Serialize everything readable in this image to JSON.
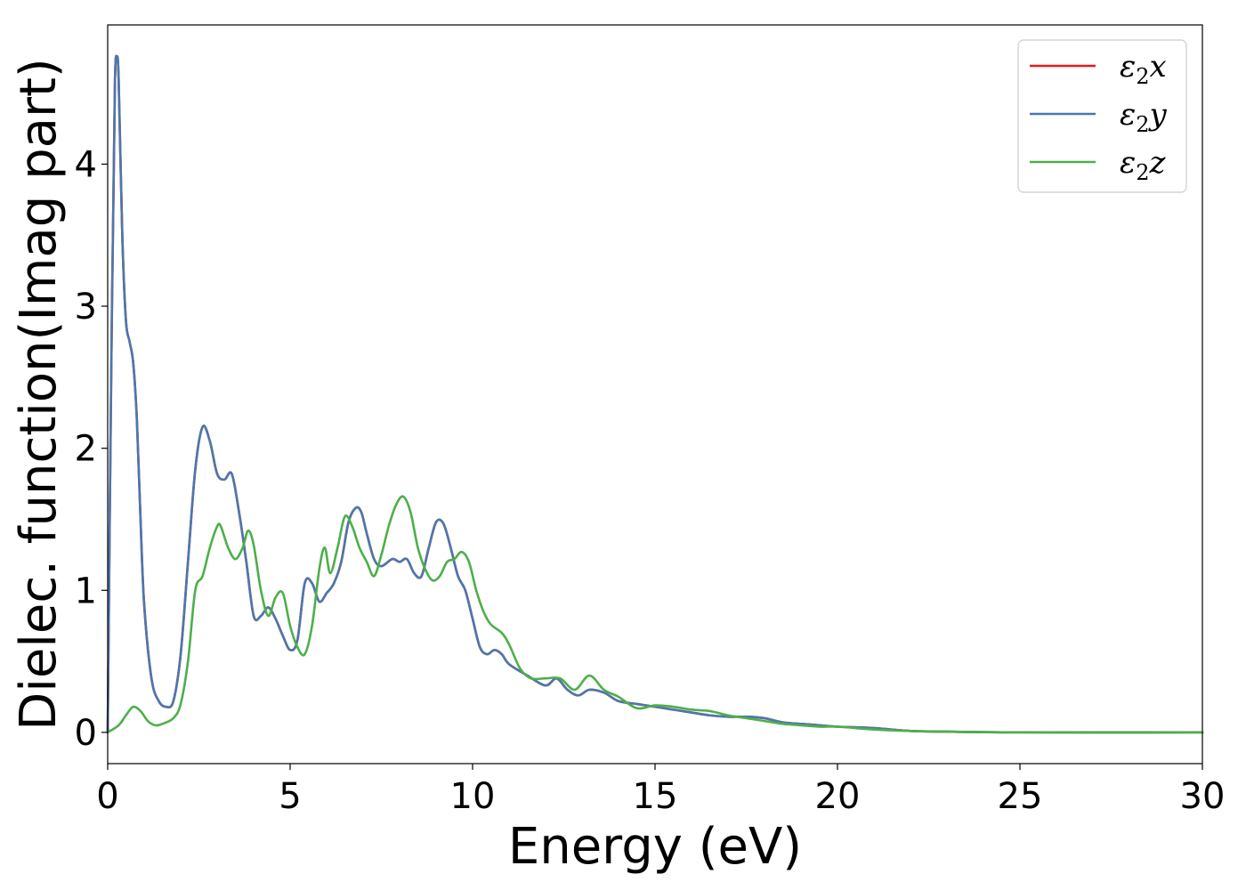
{
  "chart_data": {
    "type": "line",
    "xlabel": "Energy (eV)",
    "ylabel": "Dielec. function(Imag part)",
    "xlim": [
      0,
      30
    ],
    "ylim": [
      -0.22,
      4.98
    ],
    "xticks": [
      0,
      5,
      10,
      15,
      20,
      25,
      30
    ],
    "yticks": [
      0,
      1,
      2,
      3,
      4
    ],
    "grid": false,
    "legend_position": "top-right",
    "series": [
      {
        "name": "ε2x",
        "legend_main": "ε",
        "legend_sub": "2",
        "legend_suffix": "x",
        "color": "#e41a1c",
        "x": [
          0,
          0.1,
          0.2,
          0.25,
          0.3,
          0.4,
          0.5,
          0.6,
          0.7,
          0.8,
          0.9,
          1.0,
          1.2,
          1.4,
          1.6,
          1.8,
          2.0,
          2.2,
          2.4,
          2.6,
          2.8,
          3.0,
          3.2,
          3.4,
          3.6,
          3.8,
          4.0,
          4.2,
          4.4,
          4.6,
          4.8,
          5.0,
          5.2,
          5.4,
          5.6,
          5.8,
          6.0,
          6.2,
          6.4,
          6.6,
          6.8,
          6.95,
          7.1,
          7.3,
          7.5,
          7.8,
          8.0,
          8.2,
          8.4,
          8.6,
          8.8,
          9.0,
          9.2,
          9.4,
          9.6,
          9.8,
          10.0,
          10.2,
          10.4,
          10.6,
          10.8,
          11.0,
          11.5,
          12.0,
          12.3,
          12.6,
          12.9,
          13.2,
          13.6,
          14.0,
          14.5,
          15.0,
          15.5,
          16.0,
          16.5,
          17.0,
          17.5,
          18.0,
          18.5,
          19.0,
          19.5,
          20.0,
          21.0,
          22.0,
          23.0,
          25.0,
          30.0
        ],
        "values": [
          0.0,
          2.6,
          4.6,
          4.75,
          4.6,
          3.5,
          2.9,
          2.75,
          2.6,
          2.2,
          1.5,
          0.9,
          0.38,
          0.22,
          0.18,
          0.22,
          0.55,
          1.2,
          1.85,
          2.15,
          2.05,
          1.82,
          1.78,
          1.82,
          1.55,
          1.2,
          0.82,
          0.82,
          0.88,
          0.8,
          0.68,
          0.58,
          0.65,
          1.05,
          1.05,
          0.92,
          0.98,
          1.05,
          1.2,
          1.48,
          1.58,
          1.55,
          1.4,
          1.22,
          1.17,
          1.22,
          1.2,
          1.22,
          1.12,
          1.1,
          1.3,
          1.48,
          1.47,
          1.3,
          1.1,
          1.0,
          0.8,
          0.6,
          0.55,
          0.58,
          0.55,
          0.48,
          0.4,
          0.33,
          0.38,
          0.3,
          0.26,
          0.3,
          0.28,
          0.22,
          0.2,
          0.18,
          0.16,
          0.14,
          0.12,
          0.11,
          0.11,
          0.1,
          0.07,
          0.06,
          0.05,
          0.04,
          0.03,
          0.01,
          0.005,
          0.0,
          0.0
        ]
      },
      {
        "name": "ε2y",
        "legend_main": "ε",
        "legend_sub": "2",
        "legend_suffix": "y",
        "color": "#4a78ac",
        "x": [
          0,
          0.1,
          0.2,
          0.25,
          0.3,
          0.4,
          0.5,
          0.6,
          0.7,
          0.8,
          0.9,
          1.0,
          1.2,
          1.4,
          1.6,
          1.8,
          2.0,
          2.2,
          2.4,
          2.6,
          2.8,
          3.0,
          3.2,
          3.4,
          3.6,
          3.8,
          4.0,
          4.2,
          4.4,
          4.6,
          4.8,
          5.0,
          5.2,
          5.4,
          5.6,
          5.8,
          6.0,
          6.2,
          6.4,
          6.6,
          6.8,
          6.95,
          7.1,
          7.3,
          7.5,
          7.8,
          8.0,
          8.2,
          8.4,
          8.6,
          8.8,
          9.0,
          9.2,
          9.4,
          9.6,
          9.8,
          10.0,
          10.2,
          10.4,
          10.6,
          10.8,
          11.0,
          11.5,
          12.0,
          12.3,
          12.6,
          12.9,
          13.2,
          13.6,
          14.0,
          14.5,
          15.0,
          15.5,
          16.0,
          16.5,
          17.0,
          17.5,
          18.0,
          18.5,
          19.0,
          19.5,
          20.0,
          21.0,
          22.0,
          23.0,
          25.0,
          30.0
        ],
        "values": [
          0.0,
          2.6,
          4.6,
          4.75,
          4.6,
          3.5,
          2.9,
          2.75,
          2.6,
          2.2,
          1.5,
          0.9,
          0.38,
          0.22,
          0.18,
          0.22,
          0.55,
          1.2,
          1.85,
          2.15,
          2.05,
          1.82,
          1.78,
          1.82,
          1.55,
          1.2,
          0.82,
          0.82,
          0.88,
          0.8,
          0.68,
          0.58,
          0.65,
          1.05,
          1.05,
          0.92,
          0.98,
          1.05,
          1.2,
          1.48,
          1.58,
          1.55,
          1.4,
          1.22,
          1.17,
          1.22,
          1.2,
          1.22,
          1.12,
          1.1,
          1.3,
          1.48,
          1.47,
          1.3,
          1.1,
          1.0,
          0.8,
          0.6,
          0.55,
          0.58,
          0.55,
          0.48,
          0.4,
          0.33,
          0.38,
          0.3,
          0.26,
          0.3,
          0.28,
          0.22,
          0.2,
          0.18,
          0.16,
          0.14,
          0.12,
          0.11,
          0.11,
          0.1,
          0.07,
          0.06,
          0.05,
          0.04,
          0.03,
          0.01,
          0.005,
          0.0,
          0.0
        ]
      },
      {
        "name": "ε2z",
        "legend_main": "ε",
        "legend_sub": "2",
        "legend_suffix": "z",
        "color": "#4daf4a",
        "x": [
          0,
          0.3,
          0.5,
          0.7,
          0.9,
          1.1,
          1.3,
          1.5,
          1.8,
          2.0,
          2.2,
          2.4,
          2.6,
          2.8,
          3.0,
          3.1,
          3.3,
          3.5,
          3.7,
          3.85,
          4.0,
          4.2,
          4.4,
          4.6,
          4.8,
          5.0,
          5.2,
          5.4,
          5.6,
          5.8,
          5.95,
          6.1,
          6.3,
          6.5,
          6.7,
          6.9,
          7.1,
          7.3,
          7.5,
          7.7,
          7.9,
          8.1,
          8.3,
          8.5,
          8.7,
          8.9,
          9.1,
          9.3,
          9.5,
          9.7,
          9.9,
          10.1,
          10.3,
          10.5,
          10.8,
          11.0,
          11.3,
          11.6,
          12.0,
          12.4,
          12.8,
          13.2,
          13.6,
          14.0,
          14.5,
          15.0,
          15.5,
          16.0,
          16.5,
          17.0,
          17.5,
          18.0,
          18.5,
          19.0,
          19.5,
          20.0,
          21.0,
          22.0,
          23.0,
          25.0,
          30.0
        ],
        "values": [
          0.0,
          0.05,
          0.12,
          0.18,
          0.15,
          0.08,
          0.05,
          0.06,
          0.1,
          0.2,
          0.5,
          1.0,
          1.1,
          1.3,
          1.45,
          1.45,
          1.3,
          1.22,
          1.3,
          1.42,
          1.32,
          1.0,
          0.82,
          0.95,
          0.98,
          0.75,
          0.6,
          0.55,
          0.75,
          1.15,
          1.3,
          1.12,
          1.3,
          1.52,
          1.45,
          1.3,
          1.2,
          1.1,
          1.25,
          1.45,
          1.6,
          1.66,
          1.55,
          1.3,
          1.15,
          1.07,
          1.1,
          1.2,
          1.22,
          1.27,
          1.2,
          1.0,
          0.85,
          0.76,
          0.7,
          0.62,
          0.45,
          0.38,
          0.38,
          0.38,
          0.3,
          0.4,
          0.3,
          0.25,
          0.17,
          0.19,
          0.18,
          0.16,
          0.15,
          0.12,
          0.1,
          0.08,
          0.06,
          0.05,
          0.04,
          0.04,
          0.02,
          0.01,
          0.005,
          0.0,
          0.0
        ]
      }
    ]
  }
}
